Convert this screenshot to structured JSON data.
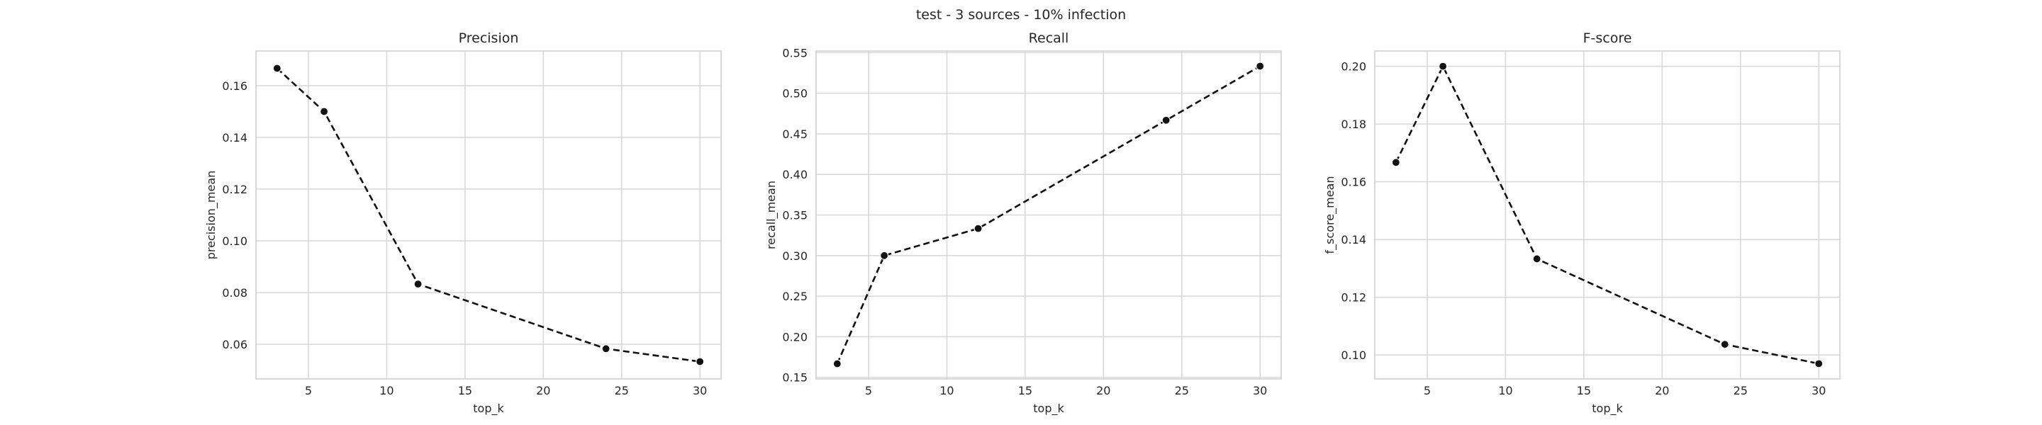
{
  "figure": {
    "suptitle": "test - 3 sources - 10% infection"
  },
  "chart_data": [
    {
      "type": "line",
      "title": "Precision",
      "xlabel": "top_k",
      "ylabel": "precision_mean",
      "x": [
        3,
        6,
        12,
        24,
        30
      ],
      "series": [
        {
          "values": [
            0.1667,
            0.15,
            0.0833,
            0.0583,
            0.0533
          ],
          "color": "#111111",
          "line_style": "dashed",
          "marker": "circle"
        }
      ],
      "xlim": [
        1.65,
        31.35
      ],
      "ylim": [
        0.0466,
        0.1734
      ],
      "xticks": [
        5,
        10,
        15,
        20,
        25,
        30
      ],
      "xtick_labels": [
        "5",
        "10",
        "15",
        "20",
        "25",
        "30"
      ],
      "yticks": [
        0.06,
        0.08,
        0.1,
        0.12,
        0.14,
        0.16
      ],
      "ytick_labels": [
        "0.06",
        "0.08",
        "0.10",
        "0.12",
        "0.14",
        "0.16"
      ],
      "grid": true
    },
    {
      "type": "line",
      "title": "Recall",
      "xlabel": "top_k",
      "ylabel": "recall_mean",
      "x": [
        3,
        6,
        12,
        24,
        30
      ],
      "series": [
        {
          "values": [
            0.1667,
            0.3,
            0.3333,
            0.4667,
            0.5333
          ],
          "color": "#111111",
          "line_style": "dashed",
          "marker": "circle"
        }
      ],
      "xlim": [
        1.65,
        31.35
      ],
      "ylim": [
        0.148,
        0.552
      ],
      "xticks": [
        5,
        10,
        15,
        20,
        25,
        30
      ],
      "xtick_labels": [
        "5",
        "10",
        "15",
        "20",
        "25",
        "30"
      ],
      "yticks": [
        0.15,
        0.2,
        0.25,
        0.3,
        0.35,
        0.4,
        0.45,
        0.5,
        0.55
      ],
      "ytick_labels": [
        "0.15",
        "0.20",
        "0.25",
        "0.30",
        "0.35",
        "0.40",
        "0.45",
        "0.50",
        "0.55"
      ],
      "grid": true
    },
    {
      "type": "line",
      "title": "F-score",
      "xlabel": "top_k",
      "ylabel": "f_score_mean",
      "x": [
        3,
        6,
        12,
        24,
        30
      ],
      "series": [
        {
          "values": [
            0.1667,
            0.2,
            0.1333,
            0.1037,
            0.097
          ],
          "color": "#111111",
          "line_style": "dashed",
          "marker": "circle"
        }
      ],
      "xlim": [
        1.65,
        31.35
      ],
      "ylim": [
        0.0917,
        0.2053
      ],
      "xticks": [
        5,
        10,
        15,
        20,
        25,
        30
      ],
      "xtick_labels": [
        "5",
        "10",
        "15",
        "20",
        "25",
        "30"
      ],
      "yticks": [
        0.1,
        0.12,
        0.14,
        0.16,
        0.18,
        0.2
      ],
      "ytick_labels": [
        "0.10",
        "0.12",
        "0.14",
        "0.16",
        "0.18",
        "0.20"
      ],
      "grid": true
    }
  ]
}
